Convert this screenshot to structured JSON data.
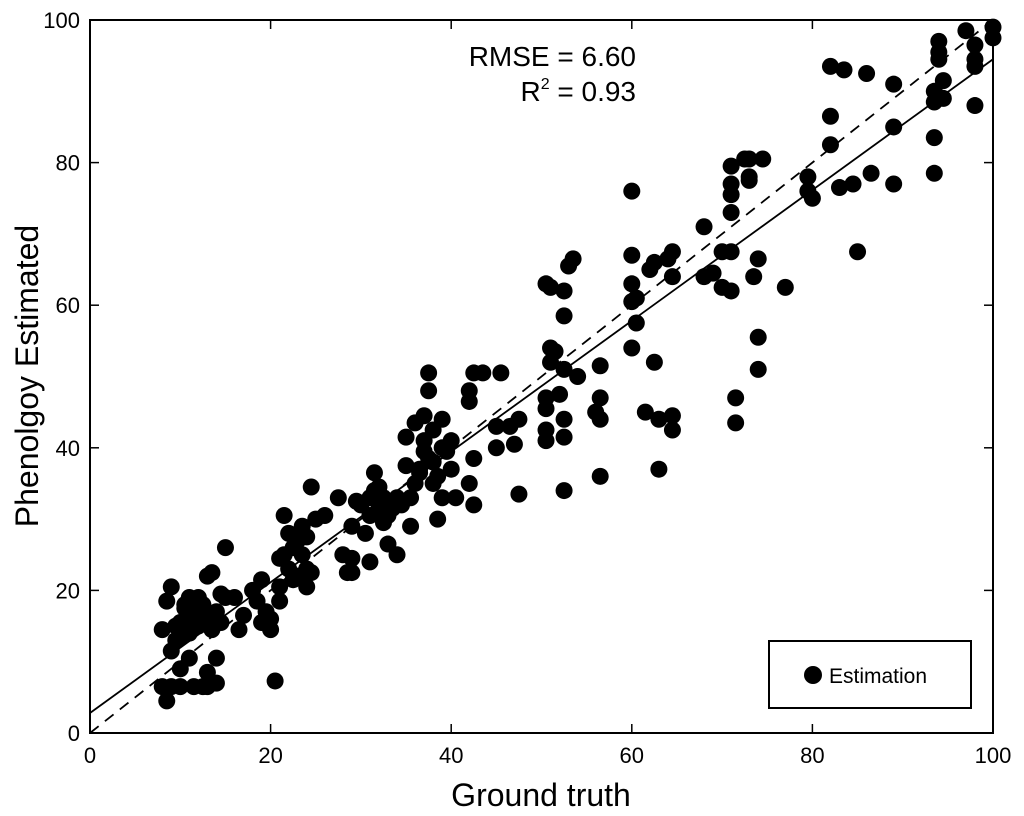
{
  "chart_data": {
    "type": "scatter",
    "xlabel": "Ground truth",
    "ylabel": "Phenolgoy Estimated",
    "xlim": [
      0,
      100
    ],
    "ylim": [
      0,
      100
    ],
    "xticks": [
      0,
      20,
      40,
      60,
      80,
      100
    ],
    "yticks": [
      0,
      20,
      40,
      60,
      80,
      100
    ],
    "grid": false,
    "legend": {
      "placement": "bottom-right",
      "entries": [
        "Estimation"
      ]
    },
    "annotations": {
      "rmse": "RMSE = 6.60",
      "r2_prefix": "R",
      "r2_sup": "2",
      "r2_rest": " = 0.93"
    },
    "lines": [
      {
        "style": "solid",
        "x": [
          0,
          100
        ],
        "y": [
          2.8,
          94.5
        ]
      },
      {
        "style": "dashed",
        "x": [
          0,
          100
        ],
        "y": [
          0,
          100
        ]
      }
    ],
    "colors": {
      "marker": "#000000",
      "line": "#000000",
      "background": "#ffffff"
    },
    "series": [
      {
        "name": "Estimation",
        "points": [
          [
            8,
            14.5
          ],
          [
            8.5,
            18.5
          ],
          [
            9,
            20.5
          ],
          [
            9.5,
            15
          ],
          [
            9,
            11.5
          ],
          [
            10,
            13.5
          ],
          [
            10.5,
            18
          ],
          [
            11,
            16
          ],
          [
            11.5,
            17.5
          ],
          [
            12,
            19
          ],
          [
            12,
            15
          ],
          [
            12.5,
            18
          ],
          [
            13,
            16.5
          ],
          [
            13.5,
            14.5
          ],
          [
            14,
            17
          ],
          [
            14.5,
            19.5
          ],
          [
            13,
            22
          ],
          [
            13.5,
            22.5
          ],
          [
            15,
            26
          ],
          [
            15,
            19
          ],
          [
            16,
            19
          ],
          [
            16.5,
            14.5
          ],
          [
            17,
            16.5
          ],
          [
            18,
            20
          ],
          [
            18.5,
            18.5
          ],
          [
            19,
            21.5
          ],
          [
            19.5,
            17
          ],
          [
            20,
            16
          ],
          [
            20,
            14.5
          ],
          [
            19,
            15.5
          ],
          [
            8,
            6.5
          ],
          [
            8.5,
            4.5
          ],
          [
            9,
            6.5
          ],
          [
            10,
            6.5
          ],
          [
            10,
            9
          ],
          [
            11,
            10.5
          ],
          [
            11.5,
            6.5
          ],
          [
            12.5,
            6.5
          ],
          [
            13,
            8.5
          ],
          [
            14,
            10.5
          ],
          [
            14,
            7
          ],
          [
            13,
            6.5
          ],
          [
            20.5,
            7.3
          ],
          [
            10.5,
            17.5
          ],
          [
            11,
            14
          ],
          [
            12,
            16
          ],
          [
            10,
            15.5
          ],
          [
            9.5,
            13
          ],
          [
            11,
            19
          ],
          [
            14.5,
            15.5
          ],
          [
            21,
            18.5
          ],
          [
            21,
            20.5
          ],
          [
            21,
            24.5
          ],
          [
            21.5,
            30.5
          ],
          [
            22,
            28
          ],
          [
            22,
            23
          ],
          [
            22.5,
            21.5
          ],
          [
            23,
            27
          ],
          [
            23,
            22
          ],
          [
            23.5,
            25
          ],
          [
            23.5,
            29
          ],
          [
            24,
            23
          ],
          [
            24,
            27.5
          ],
          [
            24.5,
            34.5
          ],
          [
            24,
            20.5
          ],
          [
            25,
            30
          ],
          [
            26,
            30.5
          ],
          [
            21.5,
            25
          ],
          [
            22.5,
            26
          ],
          [
            24.5,
            22.5
          ],
          [
            27.5,
            33
          ],
          [
            28,
            25
          ],
          [
            28.5,
            22.5
          ],
          [
            29,
            22.5
          ],
          [
            29,
            29
          ],
          [
            29,
            24.5
          ],
          [
            29.5,
            32.5
          ],
          [
            30,
            32
          ],
          [
            30.5,
            28
          ],
          [
            31,
            33
          ],
          [
            31,
            30.5
          ],
          [
            31.5,
            36.5
          ],
          [
            31.5,
            34
          ],
          [
            32,
            31.5
          ],
          [
            32.5,
            29.5
          ],
          [
            32.5,
            33
          ],
          [
            33,
            30.5
          ],
          [
            33,
            26.5
          ],
          [
            33.5,
            31.5
          ],
          [
            34,
            33
          ],
          [
            34,
            25
          ],
          [
            34.5,
            32
          ],
          [
            35,
            37.5
          ],
          [
            35,
            41.5
          ],
          [
            35.5,
            33
          ],
          [
            35.5,
            29
          ],
          [
            36,
            43.5
          ],
          [
            36,
            35
          ],
          [
            36.5,
            37
          ],
          [
            37,
            39.5
          ],
          [
            37,
            41
          ],
          [
            37,
            44.5
          ],
          [
            37.5,
            48
          ],
          [
            37.5,
            50.5
          ],
          [
            38,
            38
          ],
          [
            38,
            42.5
          ],
          [
            38.5,
            36
          ],
          [
            38.5,
            30
          ],
          [
            39,
            33
          ],
          [
            39,
            44
          ],
          [
            39.5,
            39.5
          ],
          [
            40,
            41
          ],
          [
            40,
            37
          ],
          [
            40.5,
            33
          ],
          [
            31,
            24
          ],
          [
            32,
            34.5
          ],
          [
            36.5,
            36.5
          ],
          [
            37.5,
            38.5
          ],
          [
            38,
            35
          ],
          [
            39,
            40
          ],
          [
            42,
            48
          ],
          [
            42,
            46.5
          ],
          [
            42,
            35
          ],
          [
            42.5,
            50.5
          ],
          [
            42.5,
            32
          ],
          [
            42.5,
            38.5
          ],
          [
            43.5,
            50.5
          ],
          [
            45,
            43
          ],
          [
            45,
            40
          ],
          [
            45.5,
            50.5
          ],
          [
            46.5,
            43
          ],
          [
            47,
            40.5
          ],
          [
            47.5,
            44
          ],
          [
            47.5,
            33.5
          ],
          [
            50.5,
            63
          ],
          [
            50.5,
            47
          ],
          [
            50.5,
            45.5
          ],
          [
            50.5,
            42.5
          ],
          [
            50.5,
            41
          ],
          [
            51,
            62.5
          ],
          [
            51,
            54
          ],
          [
            51,
            52
          ],
          [
            51.5,
            53.5
          ],
          [
            52,
            47.5
          ],
          [
            52.5,
            62
          ],
          [
            52.5,
            58.5
          ],
          [
            52.5,
            51
          ],
          [
            52.5,
            44
          ],
          [
            52.5,
            41.5
          ],
          [
            52.5,
            34
          ],
          [
            53,
            65.5
          ],
          [
            53.5,
            66.5
          ],
          [
            54,
            50
          ],
          [
            56,
            45
          ],
          [
            56.5,
            51.5
          ],
          [
            56.5,
            47
          ],
          [
            56.5,
            44
          ],
          [
            56.5,
            36
          ],
          [
            60,
            76
          ],
          [
            60,
            67
          ],
          [
            60,
            63
          ],
          [
            60,
            60.5
          ],
          [
            60,
            54
          ],
          [
            60.5,
            61
          ],
          [
            60.5,
            57.5
          ],
          [
            61.5,
            45
          ],
          [
            62,
            65
          ],
          [
            62.5,
            66
          ],
          [
            62.5,
            52
          ],
          [
            63,
            44
          ],
          [
            63,
            37
          ],
          [
            64,
            66.5
          ],
          [
            64.5,
            67.5
          ],
          [
            64.5,
            64
          ],
          [
            64.5,
            44.5
          ],
          [
            64.5,
            42.5
          ],
          [
            68,
            71
          ],
          [
            68,
            64
          ],
          [
            69,
            64.5
          ],
          [
            70,
            67.5
          ],
          [
            70,
            62.5
          ],
          [
            71,
            79.5
          ],
          [
            71,
            77
          ],
          [
            71,
            75.5
          ],
          [
            71,
            73
          ],
          [
            71,
            67.5
          ],
          [
            71,
            62
          ],
          [
            71.5,
            43.5
          ],
          [
            71.5,
            47
          ],
          [
            72.5,
            80.5
          ],
          [
            73,
            80.5
          ],
          [
            73,
            78
          ],
          [
            73,
            77.5
          ],
          [
            73.5,
            64
          ],
          [
            74,
            66.5
          ],
          [
            74,
            51
          ],
          [
            74,
            55.5
          ],
          [
            74.5,
            80.5
          ],
          [
            77,
            62.5
          ],
          [
            79.5,
            78
          ],
          [
            79.5,
            76
          ],
          [
            80,
            75
          ],
          [
            82,
            93.5
          ],
          [
            82,
            86.5
          ],
          [
            82,
            82.5
          ],
          [
            83,
            76.5
          ],
          [
            83.5,
            93
          ],
          [
            84.5,
            77
          ],
          [
            85,
            67.5
          ],
          [
            86,
            92.5
          ],
          [
            86.5,
            78.5
          ],
          [
            89,
            91
          ],
          [
            89,
            85
          ],
          [
            89,
            77
          ],
          [
            93.5,
            90
          ],
          [
            93.5,
            88.5
          ],
          [
            93.5,
            83.5
          ],
          [
            93.5,
            78.5
          ],
          [
            94,
            97
          ],
          [
            94,
            95.5
          ],
          [
            94,
            94.5
          ],
          [
            94.5,
            91.5
          ],
          [
            94.5,
            89
          ],
          [
            97,
            98.5
          ],
          [
            98,
            96.5
          ],
          [
            98,
            94.5
          ],
          [
            98,
            93.5
          ],
          [
            98,
            88
          ],
          [
            100,
            99
          ],
          [
            100,
            97.5
          ]
        ]
      }
    ]
  }
}
